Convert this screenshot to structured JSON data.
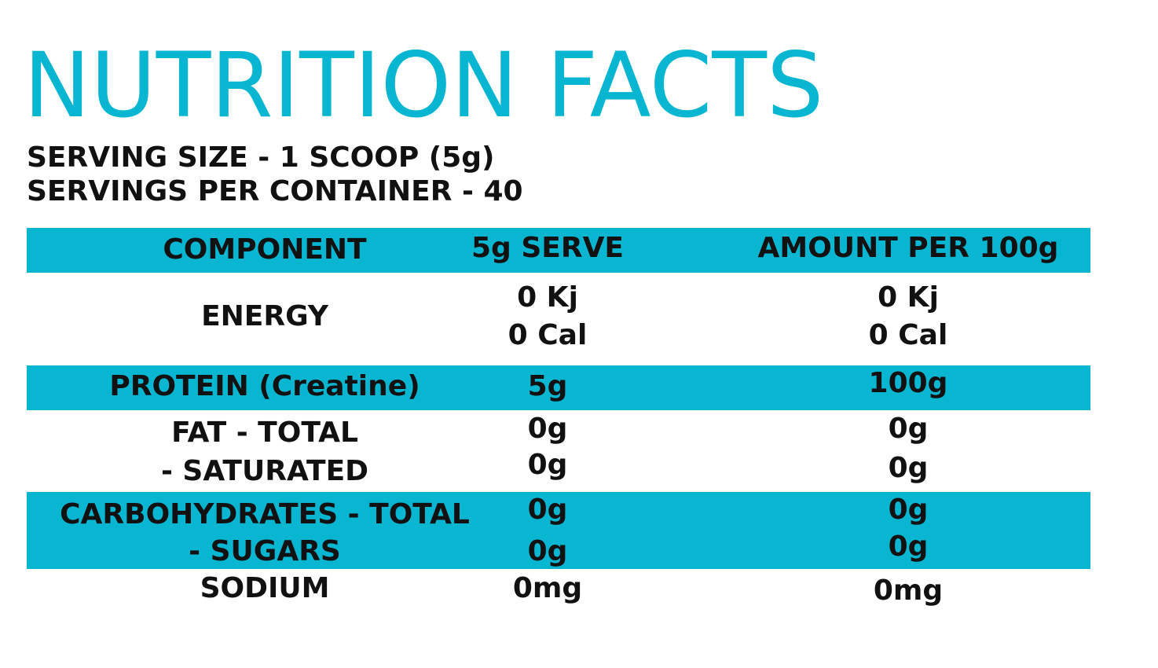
{
  "title": "NUTRITION FACTS",
  "serving_size": "SERVING SIZE - 1 SCOOP (5g)",
  "servings_per_container": "SERVINGS PER CONTAINER - 40",
  "colors": {
    "accent": "#08b6d2",
    "text": "#111111"
  },
  "table": {
    "headers": [
      "COMPONENT",
      "5g SERVE",
      "AMOUNT PER 100g"
    ],
    "rows": [
      {
        "component": "ENERGY",
        "serve": [
          "0 Kj",
          "0 Cal"
        ],
        "per100": [
          "0 Kj",
          "0 Cal"
        ]
      },
      {
        "component": "PROTEIN (Creatine)",
        "serve": [
          "5g"
        ],
        "per100": [
          "100g"
        ]
      },
      {
        "component": "FAT - TOTAL",
        "serve": [
          "0g"
        ],
        "per100": [
          "0g"
        ]
      },
      {
        "component": "- SATURATED",
        "serve": [
          "0g"
        ],
        "per100": [
          "0g"
        ]
      },
      {
        "component": "CARBOHYDRATES - TOTAL",
        "serve": [
          "0g"
        ],
        "per100": [
          "0g"
        ]
      },
      {
        "component": "- SUGARS",
        "serve": [
          "0g"
        ],
        "per100": [
          "0g"
        ]
      },
      {
        "component": "SODIUM",
        "serve": [
          "0mg"
        ],
        "per100": [
          "0mg"
        ]
      }
    ]
  }
}
